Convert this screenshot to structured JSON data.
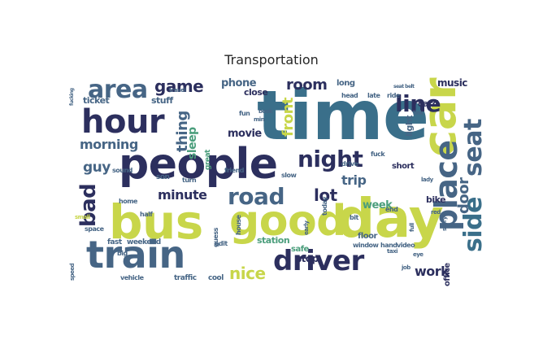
{
  "title": "Transportation",
  "palette": {
    "navy": "#2c2f5e",
    "teal": "#3a6f8a",
    "blue": "#3b5b8c",
    "green": "#4b9e7c",
    "lime": "#c8d64a",
    "yellowgreen": "#b5d34c",
    "slate": "#466585",
    "gray": "#5b6f7f"
  },
  "words": [
    {
      "text": "time",
      "size": 84,
      "color": "teal",
      "vertical": false
    },
    {
      "text": "day",
      "size": 66,
      "color": "lime",
      "vertical": false
    },
    {
      "text": "bus",
      "size": 58,
      "color": "lime",
      "vertical": false
    },
    {
      "text": "people",
      "size": 52,
      "color": "navy",
      "vertical": false
    },
    {
      "text": "car",
      "size": 56,
      "color": "lime",
      "vertical": true
    },
    {
      "text": "good",
      "size": 52,
      "color": "lime",
      "vertical": false
    },
    {
      "text": "train",
      "size": 46,
      "color": "slate",
      "vertical": false
    },
    {
      "text": "hour",
      "size": 40,
      "color": "navy",
      "vertical": false
    },
    {
      "text": "driver",
      "size": 34,
      "color": "navy",
      "vertical": false
    },
    {
      "text": "place",
      "size": 38,
      "color": "slate",
      "vertical": true
    },
    {
      "text": "area",
      "size": 30,
      "color": "slate",
      "vertical": false
    },
    {
      "text": "night",
      "size": 28,
      "color": "navy",
      "vertical": false
    },
    {
      "text": "road",
      "size": 28,
      "color": "slate",
      "vertical": false
    },
    {
      "text": "seat",
      "size": 30,
      "color": "slate",
      "vertical": true
    },
    {
      "text": "side",
      "size": 30,
      "color": "teal",
      "vertical": true
    },
    {
      "text": "line",
      "size": 28,
      "color": "navy",
      "vertical": false
    },
    {
      "text": "bad",
      "size": 26,
      "color": "navy",
      "vertical": true
    },
    {
      "text": "game",
      "size": 20,
      "color": "navy",
      "vertical": false
    },
    {
      "text": "room",
      "size": 18,
      "color": "navy",
      "vertical": false
    },
    {
      "text": "nice",
      "size": 20,
      "color": "lime",
      "vertical": false
    },
    {
      "text": "lot",
      "size": 20,
      "color": "navy",
      "vertical": false
    },
    {
      "text": "thing",
      "size": 18,
      "color": "slate",
      "vertical": true
    },
    {
      "text": "front",
      "size": 18,
      "color": "lime",
      "vertical": true
    },
    {
      "text": "morning",
      "size": 16,
      "color": "slate",
      "vertical": false
    },
    {
      "text": "minute",
      "size": 16,
      "color": "navy",
      "vertical": false
    },
    {
      "text": "guy",
      "size": 17,
      "color": "slate",
      "vertical": false
    },
    {
      "text": "door",
      "size": 18,
      "color": "slate",
      "vertical": true
    },
    {
      "text": "phone",
      "size": 13,
      "color": "slate",
      "vertical": false
    },
    {
      "text": "trip",
      "size": 16,
      "color": "slate",
      "vertical": false
    },
    {
      "text": "work",
      "size": 16,
      "color": "navy",
      "vertical": false
    },
    {
      "text": "movie",
      "size": 13,
      "color": "navy",
      "vertical": false
    },
    {
      "text": "week",
      "size": 13,
      "color": "green",
      "vertical": false
    },
    {
      "text": "sleep",
      "size": 14,
      "color": "green",
      "vertical": true
    },
    {
      "text": "music",
      "size": 12,
      "color": "navy",
      "vertical": false
    },
    {
      "text": "card",
      "size": 11,
      "color": "navy",
      "vertical": false
    },
    {
      "text": "stop",
      "size": 12,
      "color": "navy",
      "vertical": false
    },
    {
      "text": "station",
      "size": 11,
      "color": "green",
      "vertical": false
    },
    {
      "text": "close",
      "size": 11,
      "color": "navy",
      "vertical": false
    },
    {
      "text": "ticket",
      "size": 11,
      "color": "slate",
      "vertical": false
    },
    {
      "text": "stuff",
      "size": 11,
      "color": "slate",
      "vertical": false
    },
    {
      "text": "bike",
      "size": 11,
      "color": "navy",
      "vertical": false
    },
    {
      "text": "long",
      "size": 10,
      "color": "slate",
      "vertical": false
    },
    {
      "text": "light",
      "size": 11,
      "color": "slate",
      "vertical": true
    },
    {
      "text": "floor",
      "size": 10,
      "color": "slate",
      "vertical": false
    },
    {
      "text": "office",
      "size": 10,
      "color": "navy",
      "vertical": true
    },
    {
      "text": "safe",
      "size": 10,
      "color": "green",
      "vertical": false
    },
    {
      "text": "short",
      "size": 10,
      "color": "navy",
      "vertical": false
    },
    {
      "text": "weekend",
      "size": 9,
      "color": "slate",
      "vertical": false
    },
    {
      "text": "fast",
      "size": 9,
      "color": "slate",
      "vertical": false
    },
    {
      "text": "traffic",
      "size": 9,
      "color": "slate",
      "vertical": false
    },
    {
      "text": "cool",
      "size": 9,
      "color": "slate",
      "vertical": false
    },
    {
      "text": "window",
      "size": 8,
      "color": "slate",
      "vertical": false
    },
    {
      "text": "hand",
      "size": 8,
      "color": "slate",
      "vertical": false
    },
    {
      "text": "video",
      "size": 8,
      "color": "slate",
      "vertical": false
    },
    {
      "text": "friend",
      "size": 8,
      "color": "slate",
      "vertical": false
    },
    {
      "text": "slow",
      "size": 8,
      "color": "slate",
      "vertical": false
    },
    {
      "text": "fun",
      "size": 8,
      "color": "slate",
      "vertical": false
    },
    {
      "text": "book",
      "size": 7,
      "color": "slate",
      "vertical": false
    },
    {
      "text": "min",
      "size": 7,
      "color": "slate",
      "vertical": false
    },
    {
      "text": "great",
      "size": 9,
      "color": "green",
      "vertical": true
    },
    {
      "text": "house",
      "size": 8,
      "color": "slate",
      "vertical": true
    },
    {
      "text": "sound",
      "size": 8,
      "color": "slate",
      "vertical": false
    },
    {
      "text": "turn",
      "size": 8,
      "color": "slate",
      "vertical": false
    },
    {
      "text": "son",
      "size": 9,
      "color": "slate",
      "vertical": false
    },
    {
      "text": "home",
      "size": 8,
      "color": "slate",
      "vertical": false
    },
    {
      "text": "half",
      "size": 8,
      "color": "slate",
      "vertical": false
    },
    {
      "text": "space",
      "size": 8,
      "color": "slate",
      "vertical": false
    },
    {
      "text": "big",
      "size": 8,
      "color": "slate",
      "vertical": false
    },
    {
      "text": "vehicle",
      "size": 8,
      "color": "slate",
      "vertical": false
    },
    {
      "text": "guess",
      "size": 8,
      "color": "slate",
      "vertical": true
    },
    {
      "text": "edit",
      "size": 8,
      "color": "slate",
      "vertical": false
    },
    {
      "text": "drive",
      "size": 8,
      "color": "slate",
      "vertical": false
    },
    {
      "text": "today",
      "size": 8,
      "color": "slate",
      "vertical": true
    },
    {
      "text": "bit",
      "size": 8,
      "color": "slate",
      "vertical": false
    },
    {
      "text": "end",
      "size": 8,
      "color": "slate",
      "vertical": false
    },
    {
      "text": "fuck",
      "size": 8,
      "color": "slate",
      "vertical": false
    },
    {
      "text": "head",
      "size": 8,
      "color": "slate",
      "vertical": false
    },
    {
      "text": "late",
      "size": 8,
      "color": "slate",
      "vertical": false
    },
    {
      "text": "ride",
      "size": 8,
      "color": "slate",
      "vertical": false
    },
    {
      "text": "link",
      "size": 7,
      "color": "slate",
      "vertical": false
    },
    {
      "text": "lady",
      "size": 7,
      "color": "slate",
      "vertical": false
    },
    {
      "text": "red",
      "size": 7,
      "color": "slate",
      "vertical": false
    },
    {
      "text": "taxi",
      "size": 7,
      "color": "slate",
      "vertical": false
    },
    {
      "text": "eye",
      "size": 7,
      "color": "slate",
      "vertical": false
    },
    {
      "text": "small",
      "size": 7,
      "color": "lime",
      "vertical": false
    },
    {
      "text": "speed",
      "size": 7,
      "color": "slate",
      "vertical": true
    },
    {
      "text": "travel",
      "size": 7,
      "color": "slate",
      "vertical": false
    },
    {
      "text": "story",
      "size": 7,
      "color": "slate",
      "vertical": true
    },
    {
      "text": "full",
      "size": 7,
      "color": "slate",
      "vertical": true
    },
    {
      "text": "job",
      "size": 7,
      "color": "slate",
      "vertical": false
    },
    {
      "text": "early",
      "size": 7,
      "color": "slate",
      "vertical": true
    },
    {
      "text": "seat belt",
      "size": 6,
      "color": "slate",
      "vertical": false
    },
    {
      "text": "fucking",
      "size": 6,
      "color": "slate",
      "vertical": true
    }
  ]
}
